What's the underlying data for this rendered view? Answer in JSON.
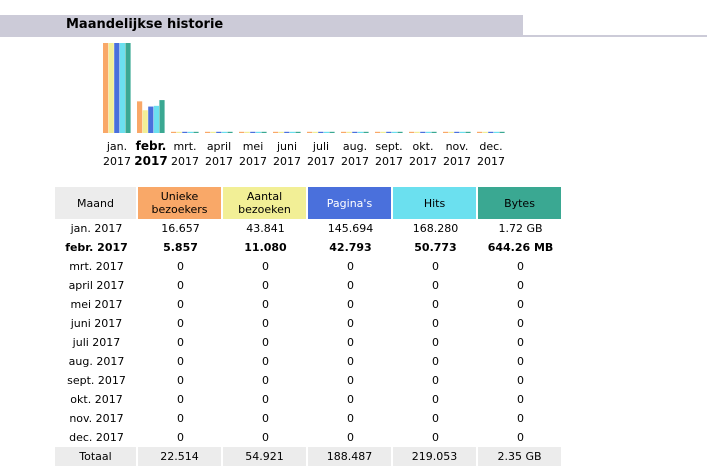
{
  "section": {
    "title": "Maandelijkse historie"
  },
  "colors": {
    "visitors": "#f9a868",
    "visits": "#f2ef96",
    "pages": "#4a70dc",
    "hits": "#6be0ef",
    "bytes": "#3aa892",
    "header": "#cccbd8",
    "cell": "#ececec"
  },
  "chart_data": {
    "type": "bar",
    "categories": [
      [
        "jan.",
        "2017"
      ],
      [
        "febr.",
        "2017"
      ],
      [
        "mrt.",
        "2017"
      ],
      [
        "april",
        "2017"
      ],
      [
        "mei",
        "2017"
      ],
      [
        "juni",
        "2017"
      ],
      [
        "juli",
        "2017"
      ],
      [
        "aug.",
        "2017"
      ],
      [
        "sept.",
        "2017"
      ],
      [
        "okt.",
        "2017"
      ],
      [
        "nov.",
        "2017"
      ],
      [
        "dec.",
        "2017"
      ]
    ],
    "highlight_index": 1,
    "series": [
      {
        "key": "visitors",
        "values": [
          16657,
          5857,
          0,
          0,
          0,
          0,
          0,
          0,
          0,
          0,
          0,
          0
        ]
      },
      {
        "key": "visits",
        "values": [
          43841,
          11080,
          0,
          0,
          0,
          0,
          0,
          0,
          0,
          0,
          0,
          0
        ]
      },
      {
        "key": "pages",
        "values": [
          145694,
          42793,
          0,
          0,
          0,
          0,
          0,
          0,
          0,
          0,
          0,
          0
        ]
      },
      {
        "key": "hits",
        "values": [
          168280,
          50773,
          0,
          0,
          0,
          0,
          0,
          0,
          0,
          0,
          0,
          0
        ]
      },
      {
        "key": "bytes",
        "values": [
          1.72,
          0.629,
          0,
          0,
          0,
          0,
          0,
          0,
          0,
          0,
          0,
          0
        ]
      }
    ]
  },
  "table": {
    "headers": [
      "Maand",
      "Unieke\nbezoekers",
      "Aantal\nbezoeken",
      "Pagina's",
      "Hits",
      "Bytes"
    ],
    "rows": [
      [
        "jan. 2017",
        "16.657",
        "43.841",
        "145.694",
        "168.280",
        "1.72 GB"
      ],
      [
        "febr. 2017",
        "5.857",
        "11.080",
        "42.793",
        "50.773",
        "644.26 MB"
      ],
      [
        "mrt. 2017",
        "0",
        "0",
        "0",
        "0",
        "0"
      ],
      [
        "april 2017",
        "0",
        "0",
        "0",
        "0",
        "0"
      ],
      [
        "mei 2017",
        "0",
        "0",
        "0",
        "0",
        "0"
      ],
      [
        "juni 2017",
        "0",
        "0",
        "0",
        "0",
        "0"
      ],
      [
        "juli 2017",
        "0",
        "0",
        "0",
        "0",
        "0"
      ],
      [
        "aug. 2017",
        "0",
        "0",
        "0",
        "0",
        "0"
      ],
      [
        "sept. 2017",
        "0",
        "0",
        "0",
        "0",
        "0"
      ],
      [
        "okt. 2017",
        "0",
        "0",
        "0",
        "0",
        "0"
      ],
      [
        "nov. 2017",
        "0",
        "0",
        "0",
        "0",
        "0"
      ],
      [
        "dec. 2017",
        "0",
        "0",
        "0",
        "0",
        "0"
      ]
    ],
    "bold_row": 1,
    "total": [
      "Totaal",
      "22.514",
      "54.921",
      "188.487",
      "219.053",
      "2.35 GB"
    ]
  }
}
